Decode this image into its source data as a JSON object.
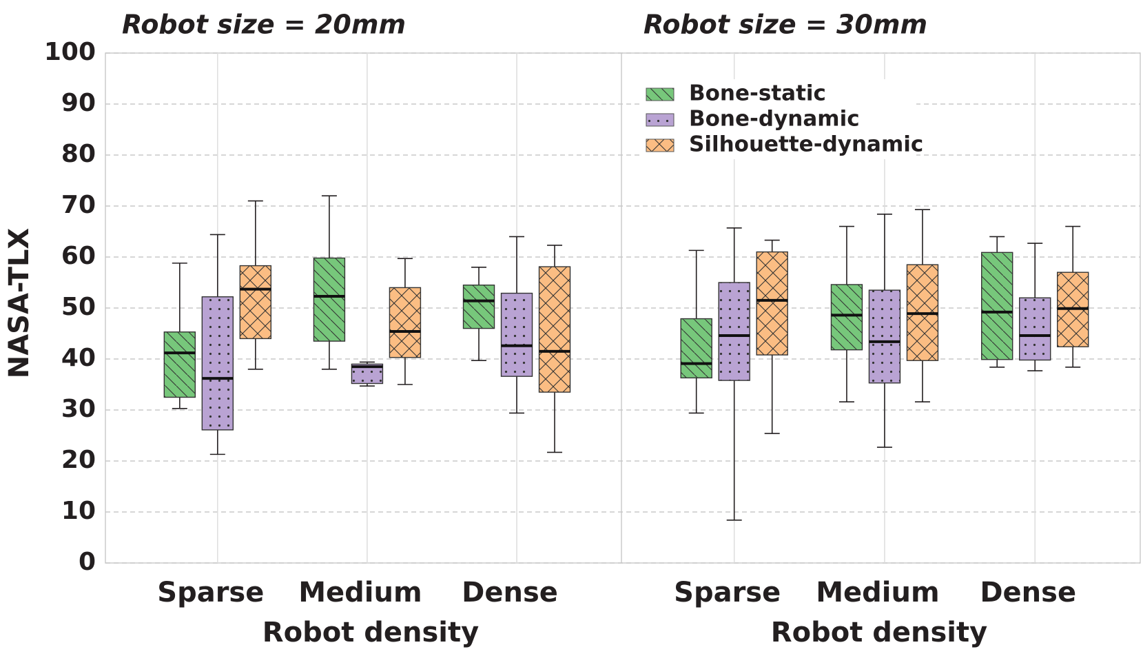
{
  "chart_data": {
    "type": "box",
    "ylabel": "NASA-TLX",
    "ylim": [
      0,
      100
    ],
    "yticks": [
      0,
      10,
      20,
      30,
      40,
      50,
      60,
      70,
      80,
      90,
      100
    ],
    "grid": true,
    "legend_position": "upper right",
    "legend": [
      {
        "name": "Bone-static",
        "color": "#77c77b",
        "pattern": "hatch"
      },
      {
        "name": "Bone-dynamic",
        "color": "#b9a3d3",
        "pattern": "dots"
      },
      {
        "name": "Silhouette-dynamic",
        "color": "#fbbd83",
        "pattern": "cross"
      }
    ],
    "panels": [
      {
        "title": "Robot size = 20mm",
        "x_label": "Robot density",
        "categories": [
          "Sparse",
          "Medium",
          "Dense"
        ],
        "series": [
          {
            "values": [
              {
                "whislo": 30.3,
                "q1": 32.5,
                "med": 41.2,
                "q3": 45.3,
                "whishi": 58.8
              },
              {
                "whislo": 38,
                "q1": 43.5,
                "med": 52.3,
                "q3": 59.8,
                "whishi": 72
              },
              {
                "whislo": 39.7,
                "q1": 46,
                "med": 51.4,
                "q3": 54.5,
                "whishi": 58
              }
            ]
          },
          {
            "values": [
              {
                "whislo": 21.3,
                "q1": 26.1,
                "med": 36.2,
                "q3": 52.2,
                "whishi": 64.4
              },
              {
                "whislo": 34.7,
                "q1": 35.2,
                "med": 38.5,
                "q3": 39,
                "whishi": 39.4
              },
              {
                "whislo": 29.4,
                "q1": 36.6,
                "med": 42.6,
                "q3": 52.9,
                "whishi": 64
              }
            ]
          },
          {
            "values": [
              {
                "whislo": 38,
                "q1": 44,
                "med": 53.7,
                "q3": 58.3,
                "whishi": 71
              },
              {
                "whislo": 35,
                "q1": 40.3,
                "med": 45.4,
                "q3": 54,
                "whishi": 59.7
              },
              {
                "whislo": 21.7,
                "q1": 33.5,
                "med": 41.5,
                "q3": 58.1,
                "whishi": 62.3
              }
            ]
          }
        ]
      },
      {
        "title": "Robot size = 30mm",
        "x_label": "Robot density",
        "categories": [
          "Sparse",
          "Medium",
          "Dense"
        ],
        "series": [
          {
            "values": [
              {
                "whislo": 29.4,
                "q1": 36.3,
                "med": 39.1,
                "q3": 47.9,
                "whishi": 61.3
              },
              {
                "whislo": 31.6,
                "q1": 41.8,
                "med": 48.6,
                "q3": 54.6,
                "whishi": 66
              },
              {
                "whislo": 38.4,
                "q1": 39.9,
                "med": 49.2,
                "q3": 60.9,
                "whishi": 64
              }
            ]
          },
          {
            "values": [
              {
                "whislo": 8.4,
                "q1": 35.8,
                "med": 44.6,
                "q3": 55,
                "whishi": 65.7
              },
              {
                "whislo": 22.7,
                "q1": 35.3,
                "med": 43.4,
                "q3": 53.5,
                "whishi": 68.4
              },
              {
                "whislo": 37.7,
                "q1": 39.8,
                "med": 44.6,
                "q3": 52,
                "whishi": 62.7
              }
            ]
          },
          {
            "values": [
              {
                "whislo": 25.4,
                "q1": 40.8,
                "med": 51.5,
                "q3": 61,
                "whishi": 63.3
              },
              {
                "whislo": 31.6,
                "q1": 39.7,
                "med": 48.9,
                "q3": 58.5,
                "whishi": 69.3
              },
              {
                "whislo": 38.4,
                "q1": 42.4,
                "med": 49.9,
                "q3": 57,
                "whishi": 66
              }
            ]
          }
        ]
      }
    ]
  }
}
